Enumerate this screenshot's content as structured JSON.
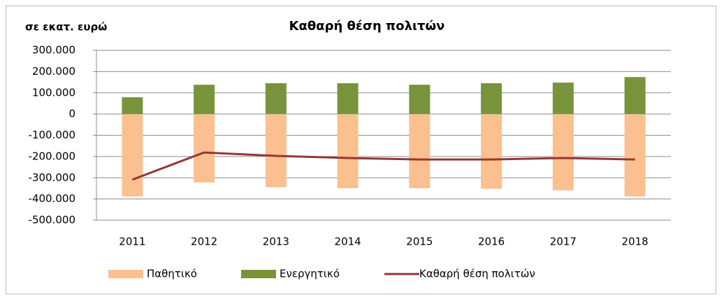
{
  "chart_data": {
    "type": "bar",
    "title": "Καθαρή θέση πολιτών",
    "y_axis_label": "σε εκατ. ευρώ",
    "categories": [
      "2011",
      "2012",
      "2013",
      "2014",
      "2015",
      "2016",
      "2017",
      "2018"
    ],
    "series": [
      {
        "name": "Παθητικό",
        "type": "bar",
        "color": "#fac090",
        "values": [
          -388000,
          -322000,
          -345000,
          -349000,
          -349000,
          -352000,
          -359000,
          -388000
        ]
      },
      {
        "name": "Ενεργητικό",
        "type": "bar",
        "color": "#77933c",
        "values": [
          79000,
          138000,
          145000,
          145000,
          138000,
          145000,
          148000,
          174000
        ]
      },
      {
        "name": "Καθαρή θέση πολιτών",
        "type": "line",
        "color": "#953735",
        "values": [
          -309000,
          -181000,
          -197000,
          -207000,
          -214000,
          -214000,
          -207000,
          -214000
        ]
      }
    ],
    "ylim": [
      -500000,
      300000
    ],
    "yticks": [
      {
        "value": -500000,
        "label": "-500.000"
      },
      {
        "value": -400000,
        "label": "-400.000"
      },
      {
        "value": -300000,
        "label": "-300.000"
      },
      {
        "value": -200000,
        "label": "-200.000"
      },
      {
        "value": -100000,
        "label": "-100.000"
      },
      0,
      {
        "value": 100000,
        "label": "100.000"
      },
      {
        "value": 200000,
        "label": "200.000"
      },
      {
        "value": 300000,
        "label": "300.000"
      }
    ],
    "grid": true,
    "legend": "bottom"
  }
}
